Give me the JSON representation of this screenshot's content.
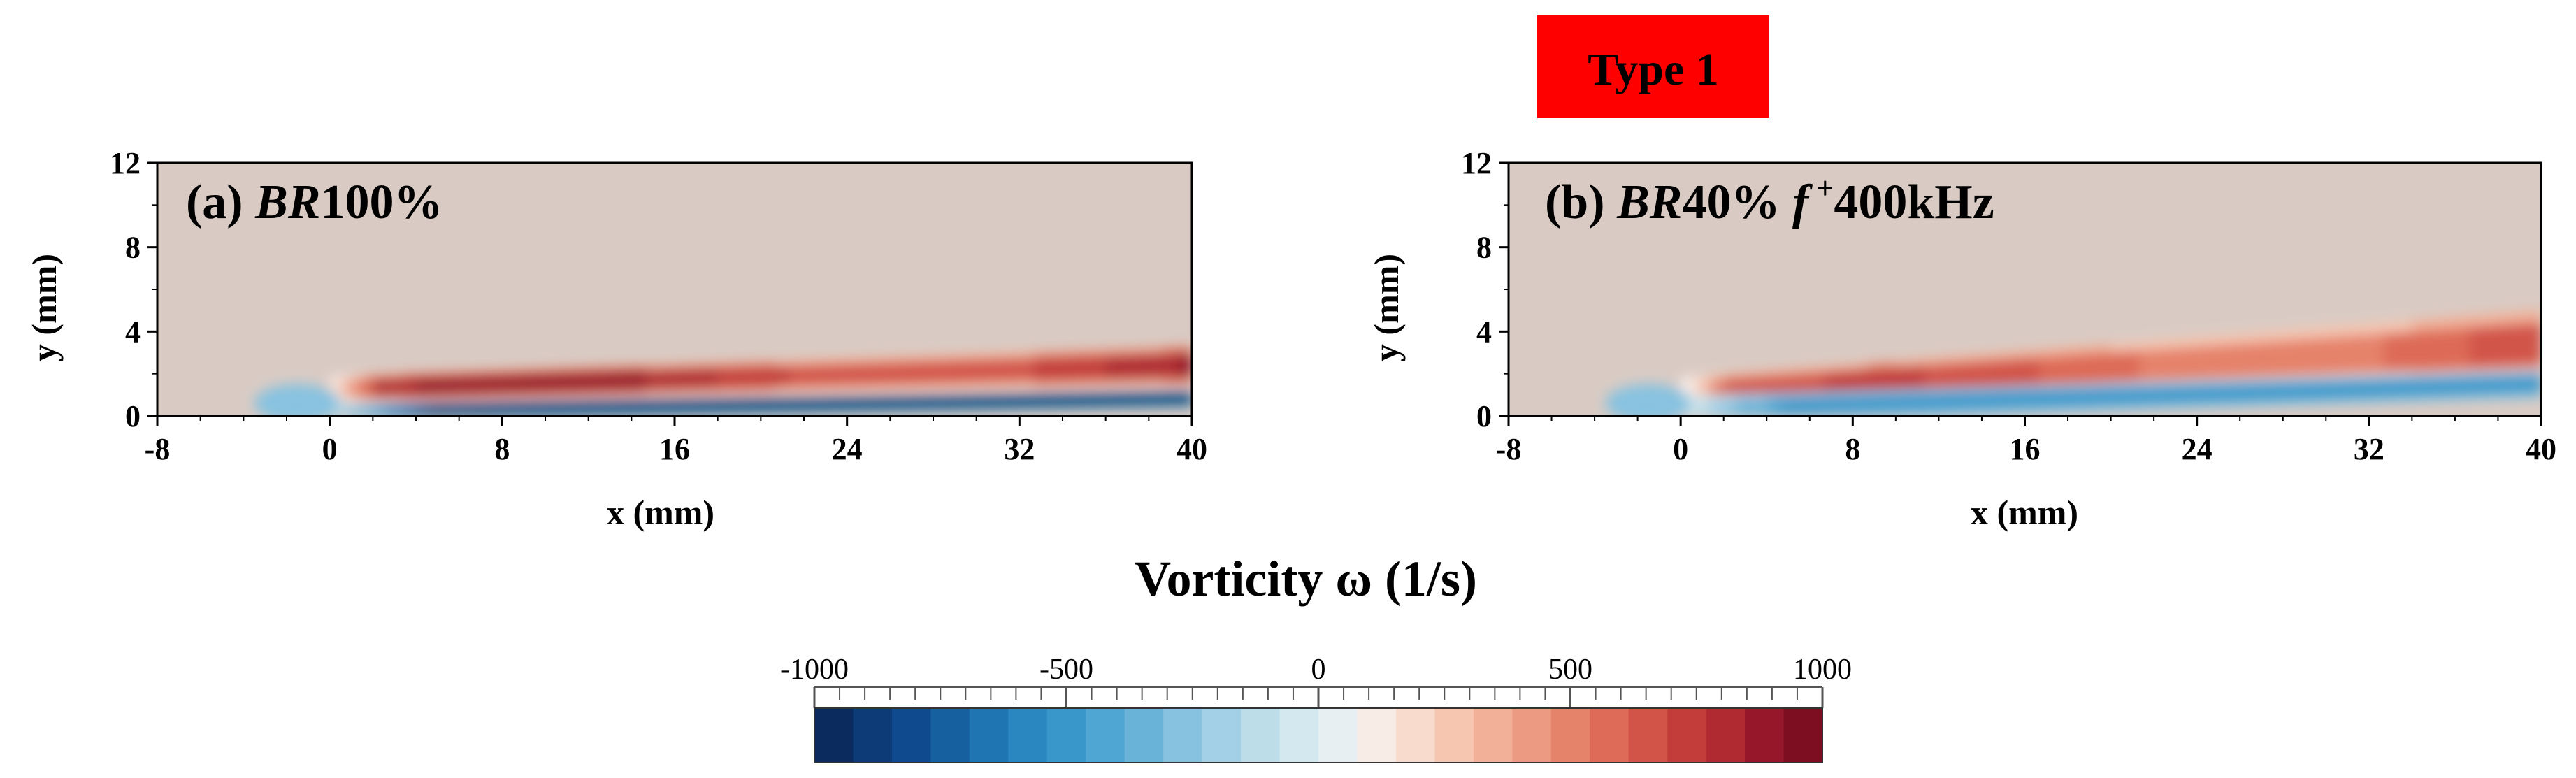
{
  "badge": {
    "text": "Type 1",
    "color": "#ff0000"
  },
  "colormap": [
    "#0b2a5e",
    "#0d3b78",
    "#0e4a8d",
    "#1760a0",
    "#1f74b2",
    "#2a87bf",
    "#3a97ca",
    "#4fa6d2",
    "#6ab3d8",
    "#87c2e0",
    "#a3d0e7",
    "#bddde9",
    "#d4e8ef",
    "#e7eff2",
    "#f8ece7",
    "#f8dbcd",
    "#f6c6b1",
    "#f2b098",
    "#ec9a81",
    "#e5826a",
    "#dd6b57",
    "#d25448",
    "#c33e3b",
    "#b02a32",
    "#97172a",
    "#7d0e22"
  ],
  "chart_data": [
    {
      "type": "heatmap",
      "panel_label": {
        "prefix": "(a) ",
        "italic": "BR",
        "suffix": "100%"
      },
      "xlabel": "x (mm)",
      "ylabel": "y (mm)",
      "xlim": [
        -8,
        40
      ],
      "ylim": [
        0,
        12
      ],
      "xticks": [
        -8,
        0,
        8,
        16,
        24,
        32,
        40
      ],
      "yticks": [
        0,
        4,
        8,
        12
      ],
      "field": {
        "description_value_units": "1/s",
        "shear_origin_x": 0,
        "positive_layer": {
          "y_center_start": 1.3,
          "y_center_end": 2.4,
          "thickness_start": 1.2,
          "thickness_end": 1.8,
          "peak": 900
        },
        "negative_layer": {
          "y_center_start": 0.2,
          "y_center_end": 0.8,
          "thickness": 0.7,
          "peak": -1000
        }
      }
    },
    {
      "type": "heatmap",
      "panel_label": {
        "prefix": "(b) ",
        "italic": "BR",
        "suffix": "40% ",
        "italic2": "f",
        "sup": " +",
        "suffix2": "400kHz"
      },
      "xlabel": "x (mm)",
      "ylabel": "y (mm)",
      "xlim": [
        -8,
        40
      ],
      "ylim": [
        0,
        12
      ],
      "xticks": [
        -8,
        0,
        8,
        16,
        24,
        32,
        40
      ],
      "yticks": [
        0,
        4,
        8,
        12
      ],
      "field": {
        "description_value_units": "1/s",
        "shear_origin_x": 0,
        "positive_layer": {
          "y_center_start": 1.2,
          "y_center_end": 3.4,
          "thickness_start": 1.3,
          "thickness_end": 3.2,
          "peak": 700
        },
        "negative_layer": {
          "y_center_start": 0.3,
          "y_center_end": 1.5,
          "thickness": 1.3,
          "peak": -500
        }
      }
    },
    {
      "type": "colorbar",
      "title": "Vorticity ω (1/s)",
      "range": [
        -1000,
        1000
      ],
      "ticks": [
        -1000,
        -500,
        0,
        500,
        1000
      ],
      "tick_labels": [
        "-1000",
        "-500",
        "0",
        "500",
        "1000"
      ]
    }
  ]
}
